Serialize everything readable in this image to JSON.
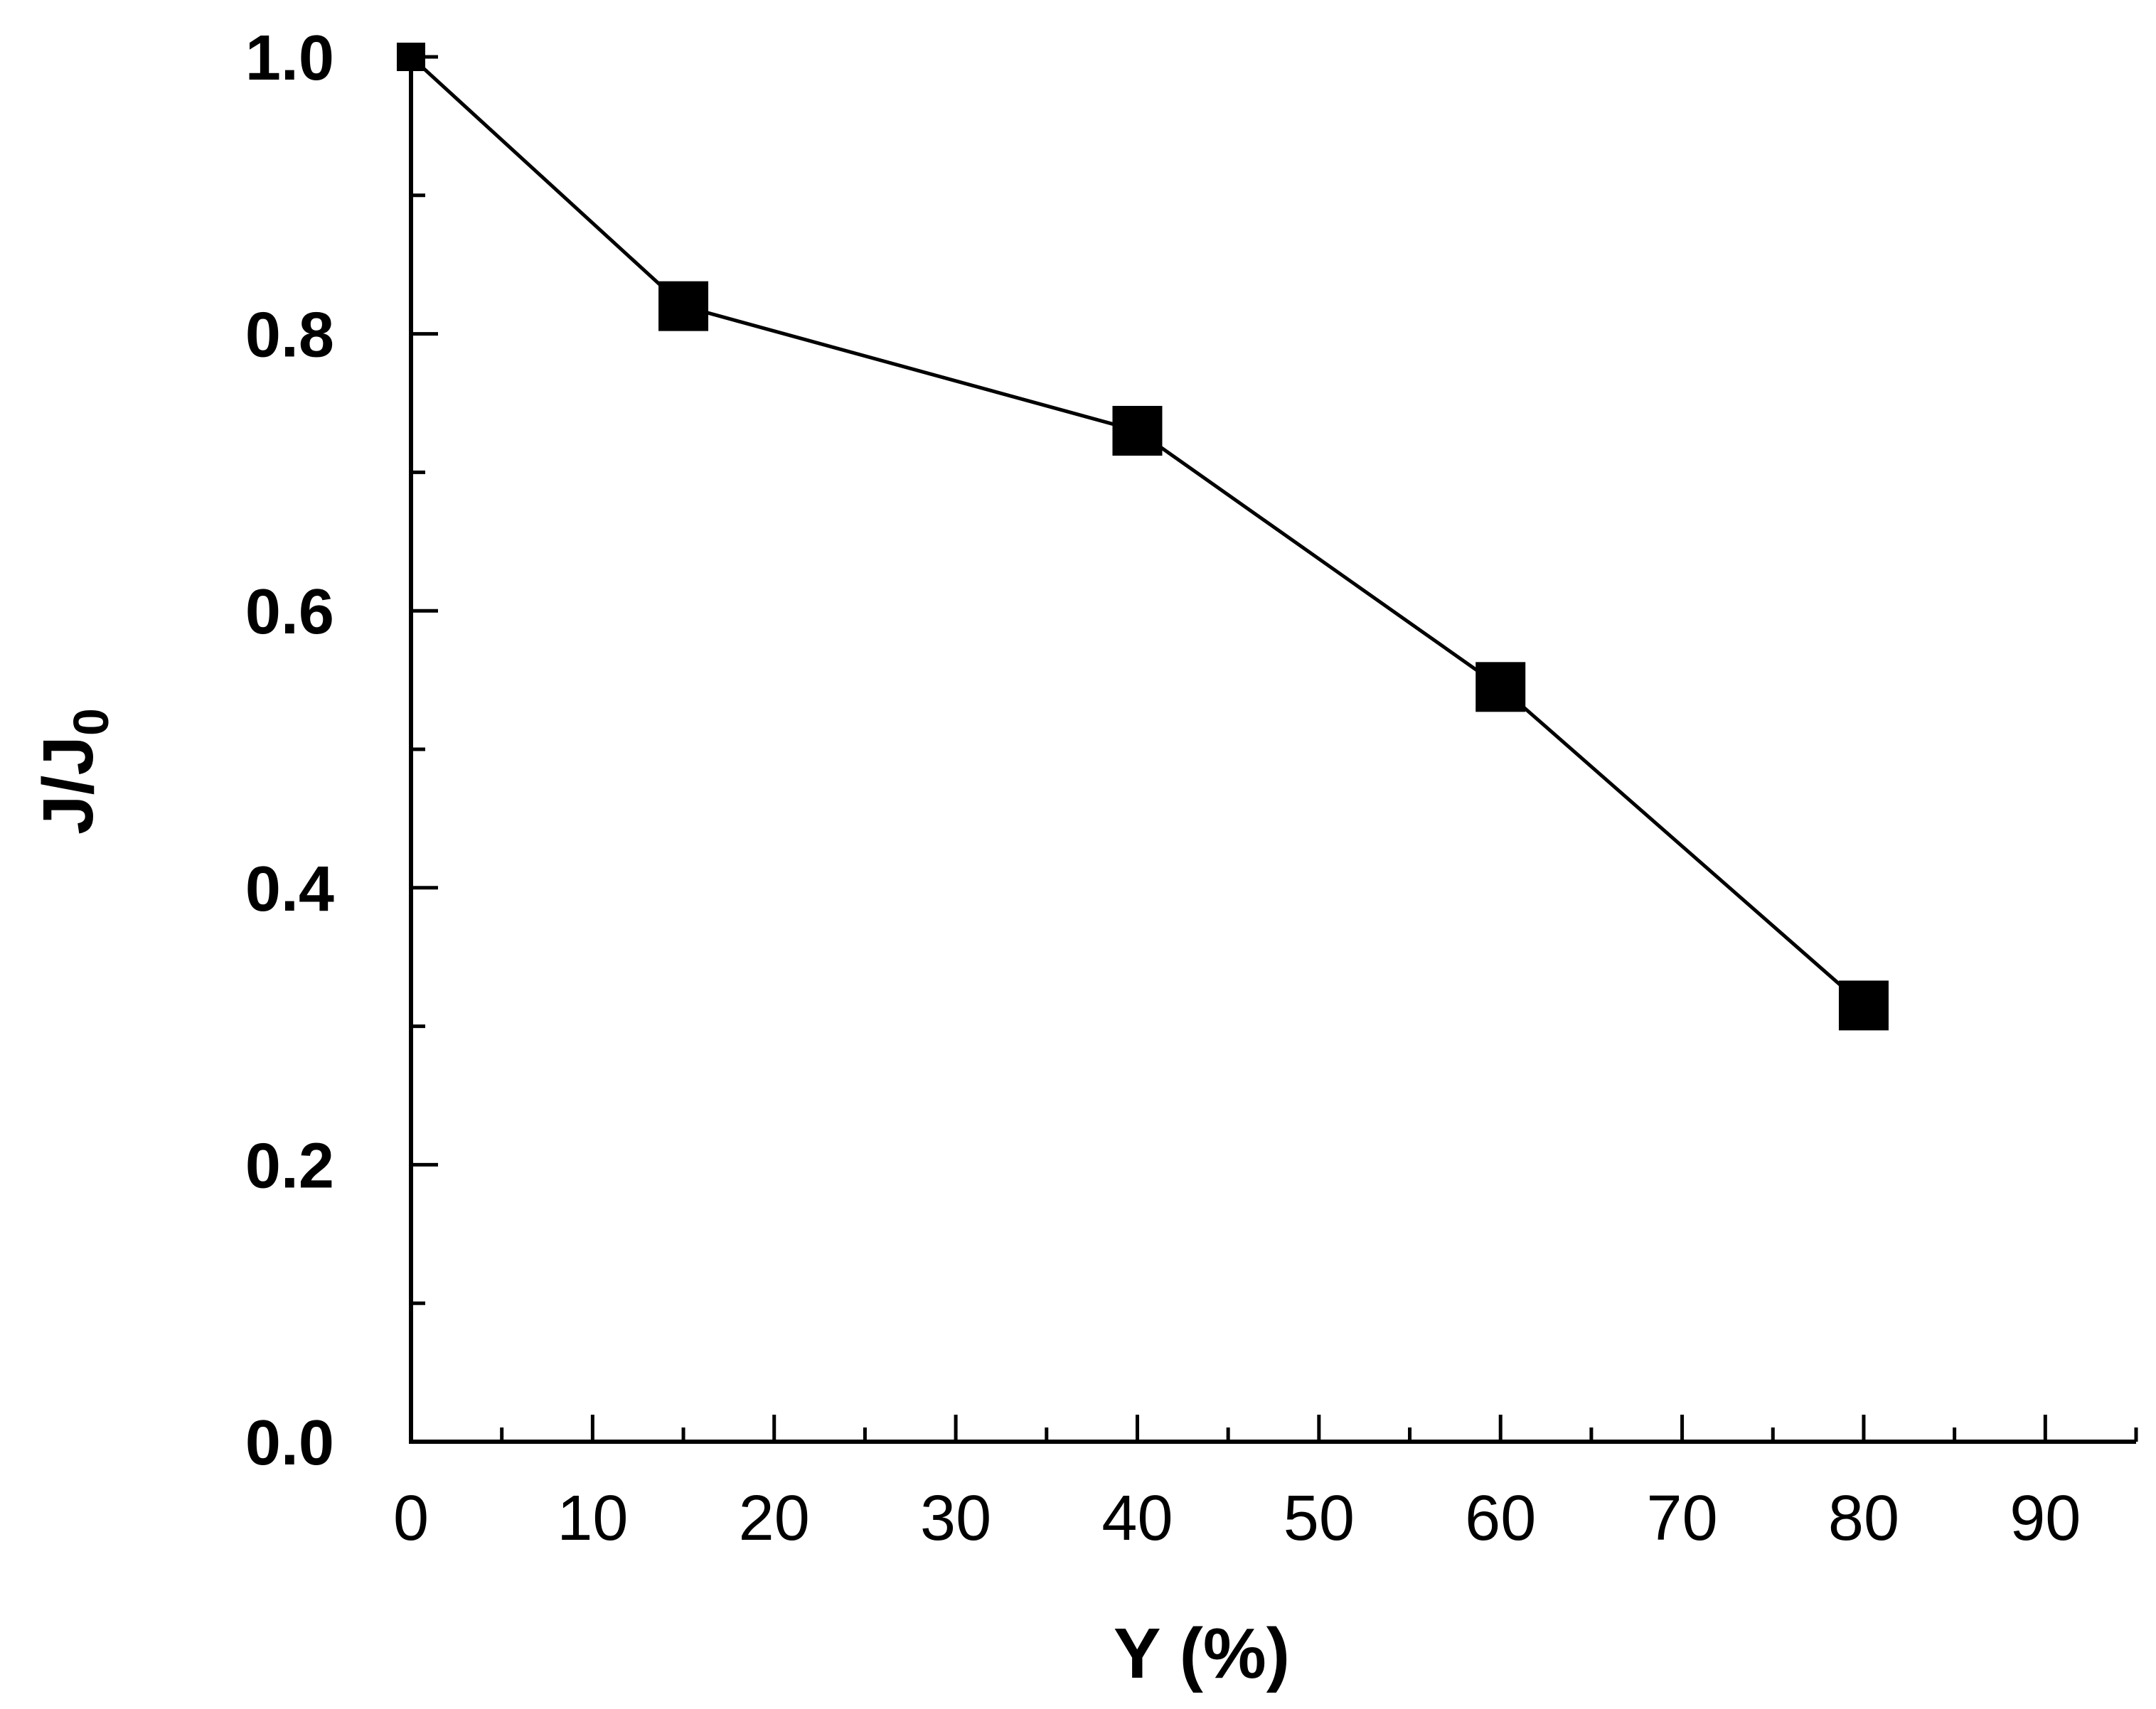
{
  "chart_data": {
    "type": "line",
    "title": "",
    "xlabel": "Y (%)",
    "ylabel": {
      "main": "J/J",
      "subscript": "0"
    },
    "xlim": [
      0,
      95
    ],
    "ylim": [
      0.0,
      1.0
    ],
    "x_ticks": [
      0,
      10,
      20,
      30,
      40,
      50,
      60,
      70,
      80,
      90
    ],
    "x_tick_labels": [
      "0",
      "10",
      "20",
      "30",
      "40",
      "50",
      "60",
      "70",
      "80",
      "90"
    ],
    "y_ticks": [
      0.0,
      0.2,
      0.4,
      0.6,
      0.8,
      1.0
    ],
    "y_tick_labels": [
      "0.0",
      "0.2",
      "0.4",
      "0.6",
      "0.8",
      "1.0"
    ],
    "x_minor_step": 5,
    "y_minor_step": 0.1,
    "grid": false,
    "series": [
      {
        "name": "J/J0",
        "marker": "square",
        "color": "#000000",
        "x": [
          0,
          15,
          40,
          60,
          80
        ],
        "y": [
          1.0,
          0.82,
          0.73,
          0.545,
          0.315
        ]
      }
    ]
  }
}
